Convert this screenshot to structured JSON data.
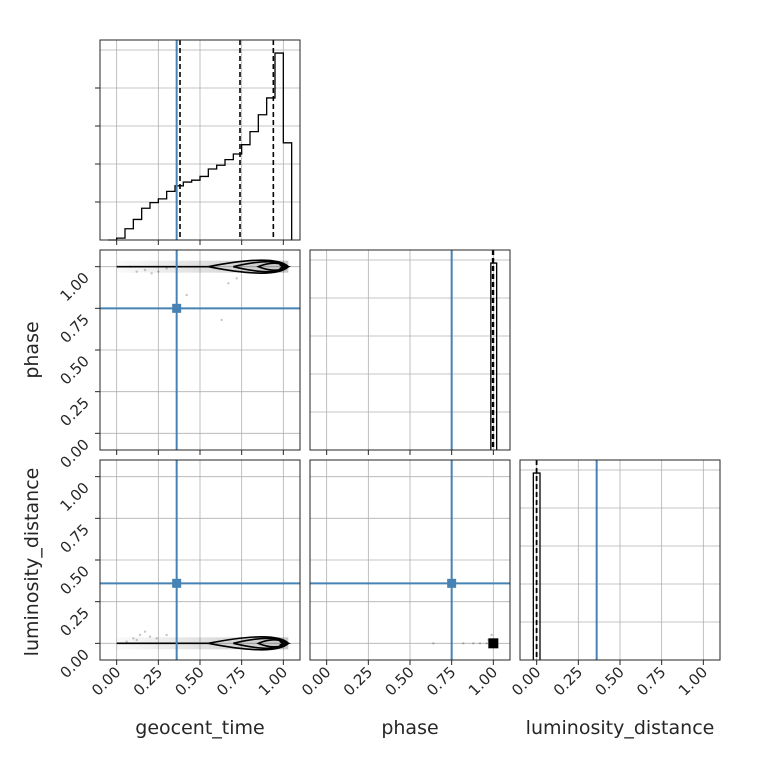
{
  "chart_data": {
    "type": "corner",
    "parameters": [
      "geocent_time",
      "phase",
      "luminosity_distance"
    ],
    "axis_labels": {
      "geocent_time": "geocent_time",
      "phase": "phase",
      "luminosity_distance": "luminosity_distance"
    },
    "xlim": [
      -0.1,
      1.1
    ],
    "ylim": [
      -0.1,
      1.1
    ],
    "ticks": [
      0.0,
      0.25,
      0.5,
      0.75,
      1.0
    ],
    "tick_labels": [
      "0.00",
      "0.25",
      "0.50",
      "0.75",
      "1.00"
    ],
    "grid": true,
    "truths": {
      "geocent_time": 0.36,
      "phase": 0.75,
      "luminosity_distance": 0.36
    },
    "truth_color": "#4682b4",
    "quantiles": {
      "geocent_time": [
        0.38,
        0.74,
        0.94
      ],
      "phase": [
        0.996,
        1.0,
        1.0
      ],
      "luminosity_distance": [
        0.0,
        0.0,
        0.0
      ]
    },
    "histograms": {
      "geocent_time": {
        "edges": [
          -0.05,
          0.0,
          0.05,
          0.1,
          0.15,
          0.2,
          0.25,
          0.3,
          0.35,
          0.4,
          0.45,
          0.5,
          0.55,
          0.6,
          0.65,
          0.7,
          0.75,
          0.8,
          0.85,
          0.9,
          0.95,
          1.0,
          1.05
        ],
        "counts": [
          0.0,
          0.01,
          0.06,
          0.11,
          0.17,
          0.2,
          0.22,
          0.26,
          0.29,
          0.31,
          0.32,
          0.34,
          0.38,
          0.4,
          0.43,
          0.46,
          0.51,
          0.58,
          0.67,
          0.76,
          1.0,
          0.52
        ],
        "ymax": 1.07
      },
      "phase": {
        "edges": [
          0.985,
          1.0,
          1.02
        ],
        "counts": [
          1.0,
          1.0
        ],
        "ymax": 1.07
      },
      "luminosity_distance": {
        "edges": [
          -0.02,
          0.0,
          0.02
        ],
        "counts": [
          1.0,
          1.0
        ],
        "ymax": 1.07
      }
    },
    "tails": {
      "geocent_time_phase": [
        [
          0.25,
          0.97
        ],
        [
          0.21,
          0.96
        ],
        [
          0.17,
          0.98
        ],
        [
          0.12,
          0.97
        ],
        [
          0.63,
          0.68
        ],
        [
          0.67,
          0.9
        ],
        [
          0.72,
          0.93
        ],
        [
          0.42,
          0.83
        ],
        [
          0.3,
          0.99
        ],
        [
          0.08,
          1.0
        ]
      ],
      "phase_luminosity_distance": [
        [
          0.64,
          0.0
        ],
        [
          0.75,
          0.0
        ],
        [
          0.82,
          0.0
        ],
        [
          0.88,
          0.0
        ],
        [
          0.92,
          0.0
        ],
        [
          0.96,
          0.0
        ],
        [
          0.99,
          0.05
        ],
        [
          0.97,
          0.02
        ]
      ],
      "geocent_time_luminosity_distance": [
        [
          0.1,
          0.03
        ],
        [
          0.14,
          0.05
        ],
        [
          0.17,
          0.07
        ],
        [
          0.2,
          0.04
        ],
        [
          0.12,
          0.02
        ],
        [
          0.24,
          0.03
        ],
        [
          0.3,
          0.05
        ],
        [
          0.06,
          0.01
        ]
      ]
    }
  }
}
